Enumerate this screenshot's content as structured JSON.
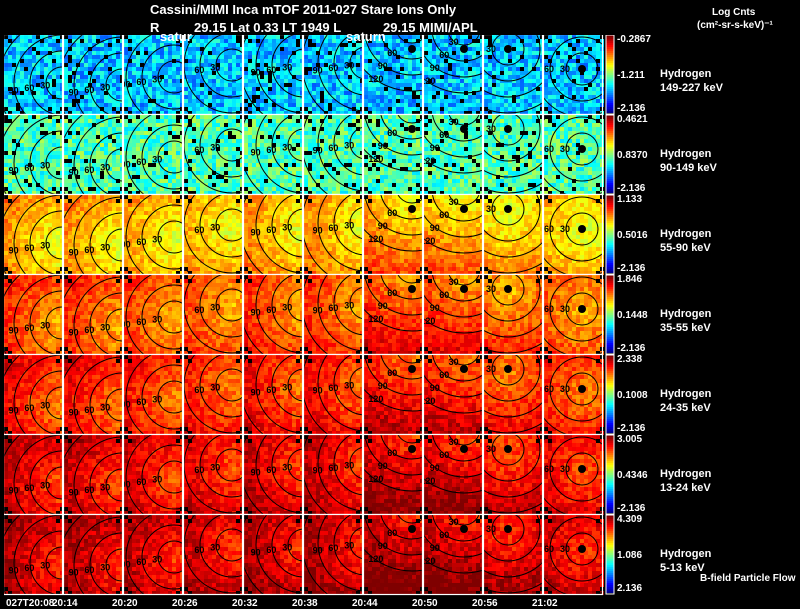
{
  "header": {
    "title": "Cassini/MIMI Inca mTOF  2011-027    Stare    Ions Only",
    "r_label": "R",
    "position_line": "29.15 Lat 0.33 LT 1949 L",
    "l_value": "29.15  MIMI/APL",
    "satur_label_1": "satur",
    "satur_label_2": "saturn"
  },
  "units": {
    "line1": "Log Cnts",
    "line2": "(cm²-sr-s-keV)⁻¹"
  },
  "footer_note": "B-field Particle Flow",
  "chart_data": {
    "type": "heatmap",
    "title": "Cassini/MIMI Inca mTOF 2011-027 Stare Ions Only",
    "x_labels": [
      "027T20:08",
      "20:14",
      "20:20",
      "20:26",
      "20:32",
      "20:38",
      "20:44",
      "20:50",
      "20:56",
      "21:02"
    ],
    "contour_levels": [
      "30",
      "60",
      "90",
      "120"
    ],
    "rows": [
      {
        "species": "Hydrogen",
        "energy": "149-227 keV",
        "cb_max": "-0.2867",
        "cb_mid": "-1.211",
        "cb_min": "-2.136",
        "level": 0.32
      },
      {
        "species": "Hydrogen",
        "energy": "90-149 keV",
        "cb_max": "0.4621",
        "cb_mid": "0.8370",
        "cb_min": "-2.136",
        "level": 0.45
      },
      {
        "species": "Hydrogen",
        "energy": "55-90 keV",
        "cb_max": "1.133",
        "cb_mid": "0.5016",
        "cb_min": "-2.136",
        "level": 0.64
      },
      {
        "species": "Hydrogen",
        "energy": "35-55 keV",
        "cb_max": "1.846",
        "cb_mid": "0.1448",
        "cb_min": "-2.136",
        "level": 0.74
      },
      {
        "species": "Hydrogen",
        "energy": "24-35 keV",
        "cb_max": "2.338",
        "cb_mid": "0.1008",
        "cb_min": "-2.136",
        "level": 0.79
      },
      {
        "species": "Hydrogen",
        "energy": "13-24 keV",
        "cb_max": "3.005",
        "cb_mid": "0.4346",
        "cb_min": "-2.136",
        "level": 0.84
      },
      {
        "species": "Hydrogen",
        "energy": "5-13 keV",
        "cb_max": "4.309",
        "cb_mid": "1.086",
        "cb_min": "2.136",
        "level": 0.87
      }
    ]
  }
}
